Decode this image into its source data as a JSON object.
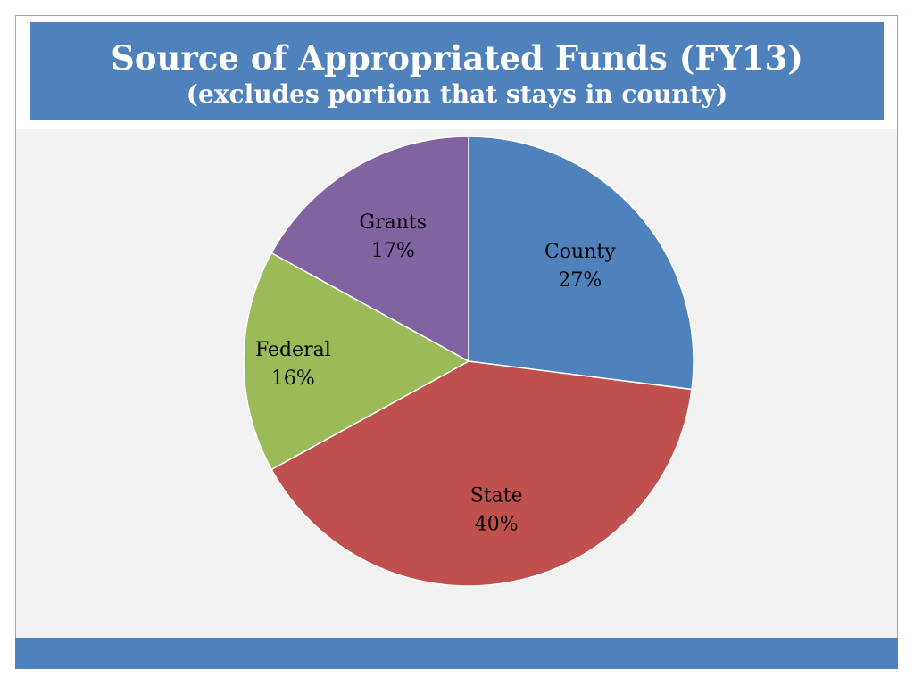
{
  "title": "Source of Appropriated Funds (FY13)",
  "subtitle": "(excludes portion that stays in county)",
  "colors": {
    "title_bg": "#4f81bd",
    "frame_border": "#9bbb59",
    "content_bg": "#f2f2f2"
  },
  "chart_data": {
    "type": "pie",
    "title": "Source of Appropriated Funds (FY13)",
    "subtitle": "(excludes portion that stays in county)",
    "slices": [
      {
        "label": "County",
        "value": 27,
        "display": "27%",
        "color": "#4f81bd"
      },
      {
        "label": "State",
        "value": 40,
        "display": "40%",
        "color": "#c0504d"
      },
      {
        "label": "Federal",
        "value": 16,
        "display": "16%",
        "color": "#9bbb59"
      },
      {
        "label": "Grants",
        "value": 17,
        "display": "17%",
        "color": "#8064a2"
      }
    ],
    "start_direction": "12 o'clock",
    "order": "clockwise",
    "legend": "none",
    "labels_inside": true
  }
}
